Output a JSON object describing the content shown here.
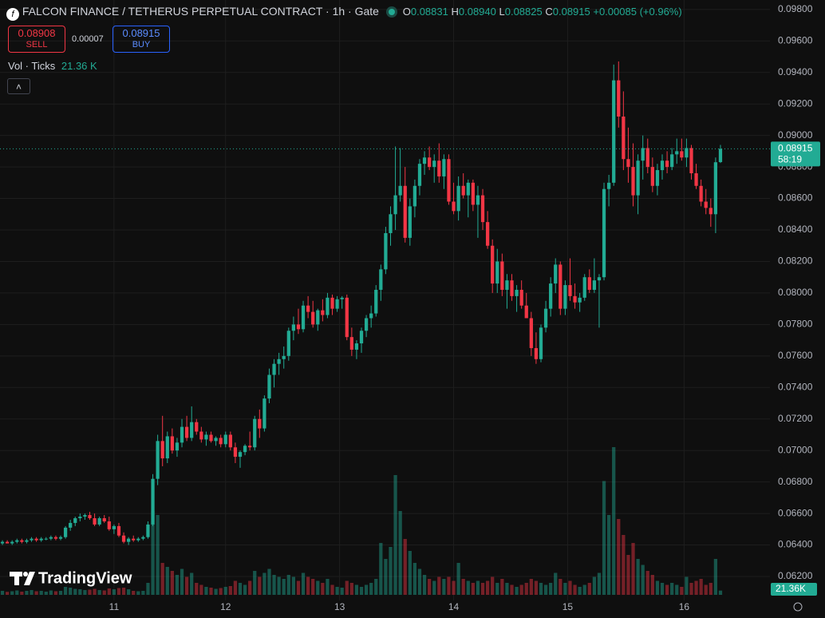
{
  "chart_data": {
    "type": "candlestick",
    "title": "FALCON FINANCE / TETHERUS PERPETUAL CONTRACT · 1h · Gate",
    "legend": {
      "o_key": "O",
      "o": "0.08831",
      "h_key": "H",
      "h": "0.08940",
      "l_key": "L",
      "l": "0.08825",
      "c_key": "C",
      "c": "0.08915",
      "change": "+0.00085 (+0.96%)"
    },
    "trade": {
      "sell_price": "0.08908",
      "sell": "SELL",
      "spread": "0.00007",
      "buy_price": "0.08915",
      "buy": "BUY"
    },
    "volume_legend": {
      "label": "Vol · Ticks",
      "value": "21.36 K"
    },
    "up_color": "#22ab94",
    "down_color": "#f23645",
    "candles": [
      [
        0.0641,
        0.0643,
        0.064,
        0.0642,
        20
      ],
      [
        0.0642,
        0.0643,
        0.0641,
        0.0641,
        15
      ],
      [
        0.0641,
        0.0643,
        0.064,
        0.0642,
        18
      ],
      [
        0.0642,
        0.0644,
        0.0641,
        0.0643,
        22
      ],
      [
        0.0643,
        0.0644,
        0.0641,
        0.0642,
        16
      ],
      [
        0.0642,
        0.0644,
        0.0641,
        0.0643,
        20
      ],
      [
        0.0643,
        0.0645,
        0.0642,
        0.0644,
        24
      ],
      [
        0.0644,
        0.0645,
        0.0642,
        0.0643,
        18
      ],
      [
        0.0643,
        0.0645,
        0.0642,
        0.0644,
        20
      ],
      [
        0.0644,
        0.0645,
        0.0643,
        0.0644,
        16
      ],
      [
        0.0644,
        0.0646,
        0.0643,
        0.0645,
        22
      ],
      [
        0.0645,
        0.0646,
        0.0643,
        0.0644,
        18
      ],
      [
        0.0644,
        0.0646,
        0.0643,
        0.0645,
        20
      ],
      [
        0.0645,
        0.0652,
        0.0644,
        0.0651,
        40
      ],
      [
        0.0651,
        0.0656,
        0.0649,
        0.0654,
        36
      ],
      [
        0.0654,
        0.0658,
        0.0652,
        0.0657,
        30
      ],
      [
        0.0657,
        0.066,
        0.0655,
        0.0658,
        28
      ],
      [
        0.0658,
        0.066,
        0.0656,
        0.0659,
        24
      ],
      [
        0.0659,
        0.0661,
        0.0656,
        0.0657,
        26
      ],
      [
        0.0657,
        0.066,
        0.0652,
        0.0653,
        30
      ],
      [
        0.0653,
        0.0658,
        0.0652,
        0.0657,
        24
      ],
      [
        0.0657,
        0.0659,
        0.0654,
        0.0655,
        22
      ],
      [
        0.0655,
        0.0658,
        0.0649,
        0.065,
        32
      ],
      [
        0.065,
        0.0653,
        0.0647,
        0.0652,
        28
      ],
      [
        0.0652,
        0.0654,
        0.0645,
        0.0646,
        34
      ],
      [
        0.0646,
        0.0648,
        0.0641,
        0.0642,
        36
      ],
      [
        0.0642,
        0.0645,
        0.064,
        0.0644,
        28
      ],
      [
        0.0644,
        0.0646,
        0.0642,
        0.0643,
        20
      ],
      [
        0.0643,
        0.0645,
        0.0642,
        0.0644,
        18
      ],
      [
        0.0644,
        0.0646,
        0.0643,
        0.0645,
        20
      ],
      [
        0.0645,
        0.0655,
        0.0644,
        0.0653,
        60
      ],
      [
        0.0653,
        0.0685,
        0.0652,
        0.0682,
        420
      ],
      [
        0.0682,
        0.071,
        0.0678,
        0.0706,
        400
      ],
      [
        0.0706,
        0.0722,
        0.069,
        0.0695,
        160
      ],
      [
        0.0695,
        0.0712,
        0.0692,
        0.0709,
        140
      ],
      [
        0.0709,
        0.0714,
        0.0698,
        0.07,
        120
      ],
      [
        0.07,
        0.0708,
        0.0696,
        0.0705,
        100
      ],
      [
        0.0705,
        0.072,
        0.0702,
        0.0715,
        130
      ],
      [
        0.0715,
        0.0722,
        0.0706,
        0.0708,
        90
      ],
      [
        0.0708,
        0.0728,
        0.0706,
        0.0718,
        110
      ],
      [
        0.0718,
        0.072,
        0.071,
        0.0712,
        60
      ],
      [
        0.0712,
        0.0715,
        0.0705,
        0.0707,
        50
      ],
      [
        0.0707,
        0.0712,
        0.0703,
        0.071,
        40
      ],
      [
        0.071,
        0.0712,
        0.0705,
        0.0706,
        36
      ],
      [
        0.0706,
        0.0709,
        0.0703,
        0.0708,
        30
      ],
      [
        0.0708,
        0.071,
        0.0702,
        0.0704,
        34
      ],
      [
        0.0704,
        0.0712,
        0.0702,
        0.071,
        40
      ],
      [
        0.071,
        0.0712,
        0.07,
        0.0702,
        44
      ],
      [
        0.0702,
        0.0705,
        0.0692,
        0.0696,
        70
      ],
      [
        0.0696,
        0.07,
        0.0689,
        0.0699,
        60
      ],
      [
        0.0699,
        0.0704,
        0.0697,
        0.0703,
        50
      ],
      [
        0.0703,
        0.0712,
        0.07,
        0.0702,
        70
      ],
      [
        0.0702,
        0.0722,
        0.07,
        0.072,
        120
      ],
      [
        0.072,
        0.0726,
        0.0708,
        0.0714,
        90
      ],
      [
        0.0714,
        0.0735,
        0.0712,
        0.0733,
        110
      ],
      [
        0.0733,
        0.0752,
        0.073,
        0.0748,
        130
      ],
      [
        0.0748,
        0.0758,
        0.074,
        0.0755,
        100
      ],
      [
        0.0755,
        0.0762,
        0.0748,
        0.0758,
        90
      ],
      [
        0.0758,
        0.0766,
        0.0752,
        0.076,
        80
      ],
      [
        0.076,
        0.0778,
        0.0757,
        0.0776,
        100
      ],
      [
        0.0776,
        0.0785,
        0.077,
        0.078,
        90
      ],
      [
        0.078,
        0.079,
        0.0774,
        0.0777,
        70
      ],
      [
        0.0777,
        0.0795,
        0.0775,
        0.0792,
        110
      ],
      [
        0.0792,
        0.0798,
        0.0784,
        0.0788,
        90
      ],
      [
        0.0788,
        0.0795,
        0.0778,
        0.078,
        80
      ],
      [
        0.078,
        0.079,
        0.0776,
        0.0789,
        70
      ],
      [
        0.0789,
        0.0796,
        0.0782,
        0.0786,
        60
      ],
      [
        0.0786,
        0.08,
        0.0784,
        0.0797,
        80
      ],
      [
        0.0797,
        0.0799,
        0.0786,
        0.079,
        50
      ],
      [
        0.079,
        0.0798,
        0.0788,
        0.0796,
        40
      ],
      [
        0.0796,
        0.0798,
        0.079,
        0.0797,
        36
      ],
      [
        0.0797,
        0.0799,
        0.077,
        0.0772,
        70
      ],
      [
        0.0772,
        0.0778,
        0.076,
        0.0764,
        60
      ],
      [
        0.0764,
        0.077,
        0.0758,
        0.0768,
        50
      ],
      [
        0.0768,
        0.0778,
        0.0762,
        0.0776,
        40
      ],
      [
        0.0776,
        0.0786,
        0.0772,
        0.0784,
        50
      ],
      [
        0.0784,
        0.0792,
        0.0778,
        0.0787,
        60
      ],
      [
        0.0787,
        0.0805,
        0.0785,
        0.0802,
        80
      ],
      [
        0.0802,
        0.0818,
        0.0795,
        0.0815,
        260
      ],
      [
        0.0815,
        0.0842,
        0.0812,
        0.0838,
        180
      ],
      [
        0.0838,
        0.0855,
        0.083,
        0.085,
        240
      ],
      [
        0.085,
        0.0893,
        0.084,
        0.0862,
        600
      ],
      [
        0.0862,
        0.0892,
        0.0858,
        0.0868,
        420
      ],
      [
        0.0868,
        0.088,
        0.0832,
        0.0835,
        280
      ],
      [
        0.0835,
        0.086,
        0.083,
        0.0855,
        220
      ],
      [
        0.0855,
        0.0872,
        0.0848,
        0.0868,
        160
      ],
      [
        0.0868,
        0.0885,
        0.0862,
        0.0882,
        130
      ],
      [
        0.0882,
        0.089,
        0.0875,
        0.0886,
        100
      ],
      [
        0.0886,
        0.0893,
        0.0878,
        0.088,
        80
      ],
      [
        0.088,
        0.0888,
        0.087,
        0.0884,
        70
      ],
      [
        0.0884,
        0.0895,
        0.087,
        0.0874,
        90
      ],
      [
        0.0874,
        0.0888,
        0.0866,
        0.0885,
        80
      ],
      [
        0.0885,
        0.0888,
        0.0856,
        0.0858,
        90
      ],
      [
        0.0858,
        0.087,
        0.085,
        0.0852,
        70
      ],
      [
        0.0852,
        0.0874,
        0.0846,
        0.0868,
        160
      ],
      [
        0.0868,
        0.0876,
        0.086,
        0.0862,
        80
      ],
      [
        0.0862,
        0.0872,
        0.0848,
        0.087,
        70
      ],
      [
        0.087,
        0.0872,
        0.0852,
        0.0856,
        60
      ],
      [
        0.0856,
        0.0868,
        0.0835,
        0.0862,
        70
      ],
      [
        0.0862,
        0.0866,
        0.084,
        0.0845,
        60
      ],
      [
        0.0845,
        0.0852,
        0.0828,
        0.083,
        70
      ],
      [
        0.083,
        0.0834,
        0.08,
        0.0806,
        90
      ],
      [
        0.0806,
        0.0828,
        0.08,
        0.082,
        60
      ],
      [
        0.082,
        0.0825,
        0.0798,
        0.0802,
        80
      ],
      [
        0.0802,
        0.0812,
        0.079,
        0.0808,
        60
      ],
      [
        0.0808,
        0.0812,
        0.0795,
        0.0798,
        50
      ],
      [
        0.0798,
        0.0805,
        0.0788,
        0.0802,
        40
      ],
      [
        0.0802,
        0.0808,
        0.079,
        0.0792,
        50
      ],
      [
        0.0792,
        0.08,
        0.0784,
        0.0784,
        60
      ],
      [
        0.0784,
        0.0788,
        0.076,
        0.0765,
        80
      ],
      [
        0.0765,
        0.0775,
        0.0755,
        0.0758,
        70
      ],
      [
        0.0758,
        0.078,
        0.0756,
        0.0778,
        60
      ],
      [
        0.0778,
        0.0795,
        0.0775,
        0.079,
        50
      ],
      [
        0.079,
        0.081,
        0.0785,
        0.0806,
        60
      ],
      [
        0.0806,
        0.0822,
        0.08,
        0.0818,
        110
      ],
      [
        0.0818,
        0.082,
        0.0786,
        0.079,
        80
      ],
      [
        0.079,
        0.0808,
        0.0786,
        0.0805,
        60
      ],
      [
        0.0805,
        0.0822,
        0.0795,
        0.0798,
        70
      ],
      [
        0.0798,
        0.0806,
        0.079,
        0.0794,
        50
      ],
      [
        0.0794,
        0.08,
        0.0788,
        0.0797,
        40
      ],
      [
        0.0797,
        0.0812,
        0.0795,
        0.081,
        50
      ],
      [
        0.081,
        0.0815,
        0.08,
        0.0802,
        60
      ],
      [
        0.0802,
        0.0822,
        0.08,
        0.0808,
        90
      ],
      [
        0.0808,
        0.0812,
        0.0778,
        0.081,
        110
      ],
      [
        0.081,
        0.087,
        0.0808,
        0.0866,
        570
      ],
      [
        0.0866,
        0.0875,
        0.0855,
        0.087,
        400
      ],
      [
        0.087,
        0.0945,
        0.0868,
        0.0935,
        740
      ],
      [
        0.0935,
        0.0947,
        0.0905,
        0.0912,
        380
      ],
      [
        0.0912,
        0.0928,
        0.0878,
        0.0885,
        300
      ],
      [
        0.0885,
        0.0905,
        0.087,
        0.088,
        200
      ],
      [
        0.088,
        0.0895,
        0.0855,
        0.0862,
        260
      ],
      [
        0.0862,
        0.0888,
        0.085,
        0.0884,
        180
      ],
      [
        0.0884,
        0.09,
        0.0872,
        0.0892,
        150
      ],
      [
        0.0892,
        0.0898,
        0.0876,
        0.088,
        120
      ],
      [
        0.088,
        0.0886,
        0.0864,
        0.0868,
        100
      ],
      [
        0.0868,
        0.0882,
        0.0862,
        0.0878,
        70
      ],
      [
        0.0878,
        0.0888,
        0.0872,
        0.0884,
        60
      ],
      [
        0.0884,
        0.089,
        0.0876,
        0.088,
        50
      ],
      [
        0.088,
        0.0892,
        0.0878,
        0.0888,
        60
      ],
      [
        0.0888,
        0.0898,
        0.0882,
        0.089,
        50
      ],
      [
        0.089,
        0.0898,
        0.0884,
        0.0886,
        40
      ],
      [
        0.0886,
        0.0898,
        0.088,
        0.0892,
        90
      ],
      [
        0.0892,
        0.0894,
        0.0872,
        0.0876,
        60
      ],
      [
        0.0876,
        0.0882,
        0.0866,
        0.0868,
        70
      ],
      [
        0.0868,
        0.0872,
        0.0855,
        0.0858,
        80
      ],
      [
        0.0858,
        0.0866,
        0.085,
        0.0854,
        50
      ],
      [
        0.0854,
        0.086,
        0.0842,
        0.085,
        60
      ],
      [
        0.085,
        0.0886,
        0.0838,
        0.0883,
        180
      ],
      [
        0.08831,
        0.0894,
        0.08825,
        0.08915,
        21.36
      ]
    ],
    "ylim": [
      0.06048,
      0.0986
    ],
    "yticks": [
      {
        "value": 0.062,
        "label": "0.06200"
      },
      {
        "value": 0.064,
        "label": "0.06400"
      },
      {
        "value": 0.066,
        "label": "0.06600"
      },
      {
        "value": 0.068,
        "label": "0.06800"
      },
      {
        "value": 0.07,
        "label": "0.07000"
      },
      {
        "value": 0.072,
        "label": "0.07200"
      },
      {
        "value": 0.074,
        "label": "0.07400"
      },
      {
        "value": 0.076,
        "label": "0.07600"
      },
      {
        "value": 0.078,
        "label": "0.07800"
      },
      {
        "value": 0.08,
        "label": "0.08000"
      },
      {
        "value": 0.082,
        "label": "0.08200"
      },
      {
        "value": 0.084,
        "label": "0.08400"
      },
      {
        "value": 0.086,
        "label": "0.08600"
      },
      {
        "value": 0.088,
        "label": "0.08800"
      },
      {
        "value": 0.09,
        "label": "0.09000"
      },
      {
        "value": 0.092,
        "label": "0.09200"
      },
      {
        "value": 0.094,
        "label": "0.09400"
      },
      {
        "value": 0.096,
        "label": "0.09600"
      },
      {
        "value": 0.098,
        "label": "0.09800"
      }
    ],
    "xlim": [
      -0.5,
      158.2
    ],
    "xticks": [
      {
        "value": 23,
        "label": "11"
      },
      {
        "value": 46,
        "label": "12"
      },
      {
        "value": 69.5,
        "label": "13"
      },
      {
        "value": 93,
        "label": "14"
      },
      {
        "value": 116.5,
        "label": "15"
      },
      {
        "value": 140.5,
        "label": "16"
      }
    ],
    "last_price_countdown": "58:19",
    "last_volume_label": "21.36K",
    "grid": true,
    "watermark": "TradingView"
  }
}
